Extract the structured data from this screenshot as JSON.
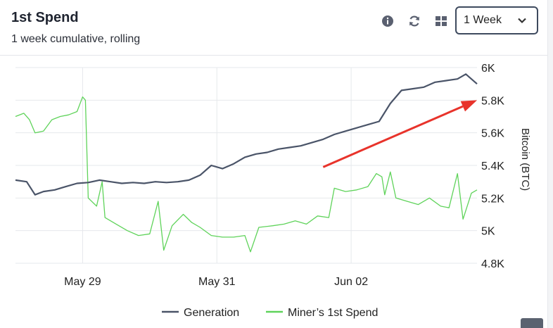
{
  "header": {
    "title": "1st Spend",
    "subtitle": "1 week cumulative, rolling"
  },
  "toolbar": {
    "info_icon": "info-circle-icon",
    "refresh_icon": "refresh-icon",
    "grid_icon": "grid-icon",
    "range_selected": "1 Week"
  },
  "colors": {
    "generation": "#4a5468",
    "spend": "#5fd35a",
    "arrow": "#e8332b",
    "grid": "#e6e8ec"
  },
  "chart_data": {
    "type": "line",
    "xlabel": "",
    "ylabel": "Bitcoin (BTC)",
    "ylim": [
      4800,
      6000
    ],
    "y_axis_side": "right",
    "y_ticks": [
      6000,
      5800,
      5600,
      5400,
      5200,
      5000,
      4800
    ],
    "y_tick_labels": [
      "6K",
      "5.8K",
      "5.6K",
      "5.4K",
      "5.2K",
      "5K",
      "4.8K"
    ],
    "x_range": [
      "2024-05-28T00:00",
      "2024-06-03T21:00"
    ],
    "x_ticks": [
      "2024-05-29T00:00",
      "2024-05-31T00:00",
      "2024-06-02T00:00"
    ],
    "x_tick_labels": [
      "May 29",
      "May 31",
      "Jun 02"
    ],
    "grid": true,
    "legend_position": "bottom",
    "series": [
      {
        "name": "Generation",
        "points": [
          [
            "2024-05-28T00:00",
            5310
          ],
          [
            "2024-05-28T04:00",
            5300
          ],
          [
            "2024-05-28T07:00",
            5220
          ],
          [
            "2024-05-28T10:00",
            5240
          ],
          [
            "2024-05-28T14:00",
            5250
          ],
          [
            "2024-05-28T18:00",
            5270
          ],
          [
            "2024-05-28T22:00",
            5290
          ],
          [
            "2024-05-29T02:00",
            5295
          ],
          [
            "2024-05-29T06:00",
            5310
          ],
          [
            "2024-05-29T10:00",
            5300
          ],
          [
            "2024-05-29T14:00",
            5290
          ],
          [
            "2024-05-29T18:00",
            5295
          ],
          [
            "2024-05-29T22:00",
            5290
          ],
          [
            "2024-05-30T02:00",
            5300
          ],
          [
            "2024-05-30T06:00",
            5295
          ],
          [
            "2024-05-30T10:00",
            5300
          ],
          [
            "2024-05-30T14:00",
            5310
          ],
          [
            "2024-05-30T18:00",
            5340
          ],
          [
            "2024-05-30T22:00",
            5400
          ],
          [
            "2024-05-31T02:00",
            5380
          ],
          [
            "2024-05-31T06:00",
            5410
          ],
          [
            "2024-05-31T10:00",
            5450
          ],
          [
            "2024-05-31T14:00",
            5470
          ],
          [
            "2024-05-31T18:00",
            5480
          ],
          [
            "2024-05-31T22:00",
            5500
          ],
          [
            "2024-06-01T02:00",
            5510
          ],
          [
            "2024-06-01T06:00",
            5520
          ],
          [
            "2024-06-01T10:00",
            5540
          ],
          [
            "2024-06-01T14:00",
            5560
          ],
          [
            "2024-06-01T18:00",
            5590
          ],
          [
            "2024-06-01T22:00",
            5610
          ],
          [
            "2024-06-02T02:00",
            5630
          ],
          [
            "2024-06-02T06:00",
            5650
          ],
          [
            "2024-06-02T10:00",
            5670
          ],
          [
            "2024-06-02T14:00",
            5780
          ],
          [
            "2024-06-02T18:00",
            5860
          ],
          [
            "2024-06-02T22:00",
            5870
          ],
          [
            "2024-06-03T02:00",
            5880
          ],
          [
            "2024-06-03T06:00",
            5910
          ],
          [
            "2024-06-03T10:00",
            5920
          ],
          [
            "2024-06-03T14:00",
            5930
          ],
          [
            "2024-06-03T17:00",
            5960
          ],
          [
            "2024-06-03T21:00",
            5900
          ]
        ]
      },
      {
        "name": "Miner’s 1st Spend",
        "points": [
          [
            "2024-05-28T00:00",
            5700
          ],
          [
            "2024-05-28T03:00",
            5720
          ],
          [
            "2024-05-28T05:00",
            5680
          ],
          [
            "2024-05-28T07:00",
            5600
          ],
          [
            "2024-05-28T10:00",
            5610
          ],
          [
            "2024-05-28T13:00",
            5680
          ],
          [
            "2024-05-28T16:00",
            5700
          ],
          [
            "2024-05-28T19:00",
            5710
          ],
          [
            "2024-05-28T22:00",
            5730
          ],
          [
            "2024-05-29T00:00",
            5820
          ],
          [
            "2024-05-29T01:00",
            5800
          ],
          [
            "2024-05-29T02:00",
            5200
          ],
          [
            "2024-05-29T05:00",
            5150
          ],
          [
            "2024-05-29T07:00",
            5300
          ],
          [
            "2024-05-29T08:00",
            5080
          ],
          [
            "2024-05-29T12:00",
            5040
          ],
          [
            "2024-05-29T16:00",
            5000
          ],
          [
            "2024-05-29T20:00",
            4970
          ],
          [
            "2024-05-30T00:00",
            4980
          ],
          [
            "2024-05-30T03:00",
            5180
          ],
          [
            "2024-05-30T05:00",
            4880
          ],
          [
            "2024-05-30T08:00",
            5030
          ],
          [
            "2024-05-30T12:00",
            5100
          ],
          [
            "2024-05-30T15:00",
            5050
          ],
          [
            "2024-05-30T18:00",
            5020
          ],
          [
            "2024-05-30T22:00",
            4970
          ],
          [
            "2024-05-31T02:00",
            4960
          ],
          [
            "2024-05-31T06:00",
            4960
          ],
          [
            "2024-05-31T10:00",
            4970
          ],
          [
            "2024-05-31T12:00",
            4870
          ],
          [
            "2024-05-31T15:00",
            5020
          ],
          [
            "2024-05-31T20:00",
            5030
          ],
          [
            "2024-06-01T00:00",
            5040
          ],
          [
            "2024-06-01T04:00",
            5060
          ],
          [
            "2024-06-01T08:00",
            5040
          ],
          [
            "2024-06-01T12:00",
            5090
          ],
          [
            "2024-06-01T16:00",
            5080
          ],
          [
            "2024-06-01T18:00",
            5260
          ],
          [
            "2024-06-01T22:00",
            5240
          ],
          [
            "2024-06-02T02:00",
            5250
          ],
          [
            "2024-06-02T06:00",
            5270
          ],
          [
            "2024-06-02T09:00",
            5350
          ],
          [
            "2024-06-02T11:00",
            5330
          ],
          [
            "2024-06-02T12:00",
            5220
          ],
          [
            "2024-06-02T14:00",
            5360
          ],
          [
            "2024-06-02T16:00",
            5200
          ],
          [
            "2024-06-02T20:00",
            5180
          ],
          [
            "2024-06-03T00:00",
            5160
          ],
          [
            "2024-06-03T04:00",
            5200
          ],
          [
            "2024-06-03T08:00",
            5150
          ],
          [
            "2024-06-03T11:00",
            5140
          ],
          [
            "2024-06-03T14:00",
            5350
          ],
          [
            "2024-06-03T16:00",
            5070
          ],
          [
            "2024-06-03T19:00",
            5230
          ],
          [
            "2024-06-03T21:00",
            5250
          ]
        ]
      }
    ],
    "annotation": {
      "type": "arrow",
      "from": [
        "2024-06-01T14:00",
        5390
      ],
      "to": [
        "2024-06-03T21:00",
        5800
      ]
    }
  }
}
